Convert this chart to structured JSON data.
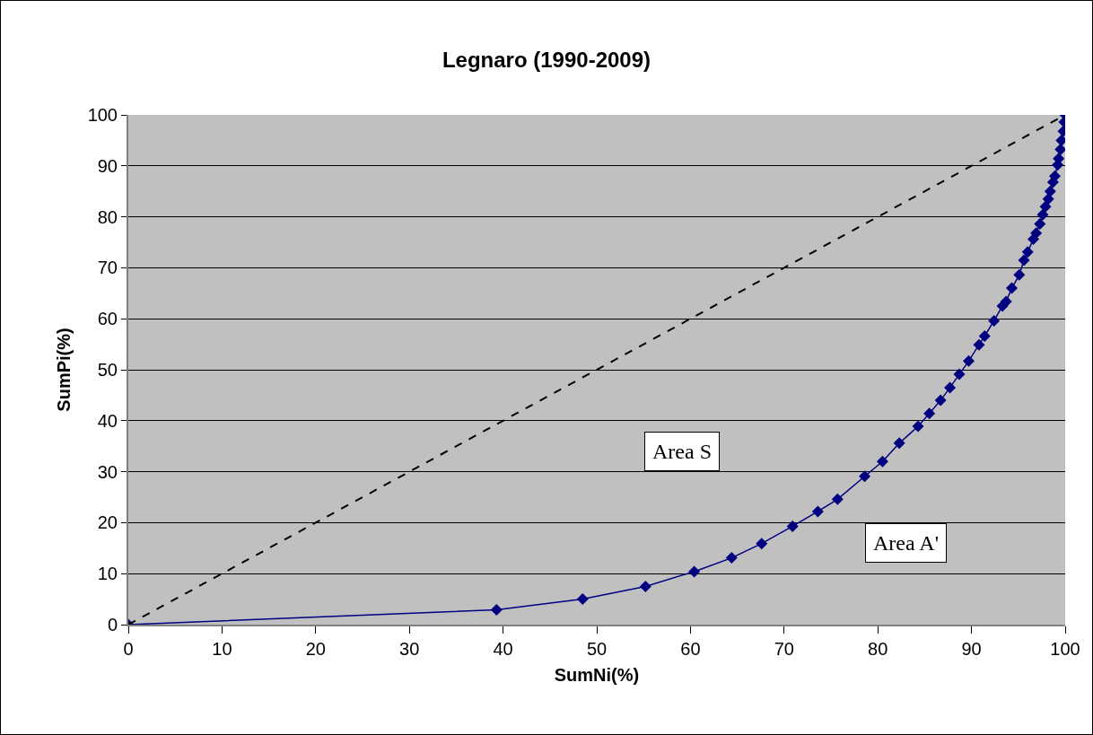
{
  "chart_data": {
    "type": "line",
    "title": "Legnaro (1990-2009)",
    "xlabel": "SumNi(%)",
    "ylabel": "SumPi(%)",
    "xlim": [
      0,
      100
    ],
    "ylim": [
      0,
      100
    ],
    "xticks": [
      0,
      10,
      20,
      30,
      40,
      50,
      60,
      70,
      80,
      90,
      100
    ],
    "yticks": [
      0,
      10,
      20,
      30,
      40,
      50,
      60,
      70,
      80,
      90,
      100
    ],
    "grid": "y",
    "marker": "diamond",
    "line_style": "solid",
    "series": [
      {
        "color": "#000080",
        "x": [
          0,
          39.3,
          48.5,
          55.2,
          60.4,
          64.4,
          67.6,
          70.9,
          73.6,
          75.7,
          78.6,
          80.5,
          82.3,
          84.3,
          85.5,
          86.7,
          87.7,
          88.7,
          89.7,
          90.8,
          91.4,
          92.4,
          93.3,
          93.7,
          94.3,
          95.1,
          95.6,
          96.0,
          96.6,
          96.9,
          97.3,
          97.6,
          97.9,
          98.2,
          98.4,
          98.7,
          98.9,
          99.2,
          99.3,
          99.5,
          99.6,
          99.8,
          99.9,
          100
        ],
        "values": [
          0,
          2.9,
          5.0,
          7.5,
          10.4,
          13.1,
          15.9,
          19.3,
          22.2,
          24.6,
          29.1,
          32.0,
          35.6,
          38.9,
          41.4,
          44.0,
          46.5,
          49.1,
          51.7,
          54.9,
          56.6,
          59.6,
          62.5,
          63.4,
          66.0,
          68.6,
          71.5,
          73.1,
          75.6,
          76.8,
          78.6,
          80.4,
          82.0,
          83.5,
          85.0,
          86.8,
          88.0,
          90.2,
          91.4,
          93.2,
          95.0,
          96.8,
          98.6,
          100
        ]
      },
      {
        "color": "#000000",
        "x": [
          0,
          100
        ],
        "values": [
          0,
          100
        ],
        "marker": "none",
        "line_style": "dashed"
      }
    ],
    "annotations": [
      "Area S",
      "Area A'"
    ]
  }
}
